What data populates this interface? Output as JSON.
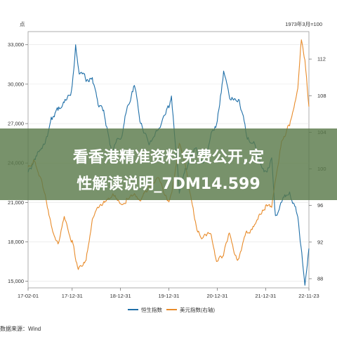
{
  "overlay": {
    "line1": "看香港精准资料免费公开,定",
    "line2": "性解读说明_7DM14.599"
  },
  "source_text": "数据来源：Wind",
  "colors": {
    "hsi": "#1f6fa8",
    "usd": "#e88b2a",
    "banner": "#5a7a4a"
  },
  "chart_data": {
    "type": "line",
    "left_unit": "点",
    "right_unit": "1973年3月=100",
    "x_ticks": [
      "17-02-01",
      "17-12-31",
      "18-12-31",
      "19-12-31",
      "20-12-31",
      "21-12-31",
      "22-11-23"
    ],
    "y_left_ticks": [
      "33,000",
      "30,000",
      "27,000",
      "24,000",
      "21,000",
      "18,000",
      "15,000"
    ],
    "y_right_ticks": [
      "112",
      "108",
      "104",
      "100",
      "96",
      "92",
      "88"
    ],
    "ylim_left": [
      14500,
      34000
    ],
    "ylim_right": [
      87,
      115
    ],
    "legend_position": "bottom",
    "series": [
      {
        "name": "恒生指数",
        "axis": "left",
        "x": [
          "17-02-01",
          "17-03-15",
          "17-05-01",
          "17-06-15",
          "17-08-01",
          "17-09-15",
          "17-11-01",
          "17-12-31",
          "18-01-26",
          "18-02-28",
          "18-04-15",
          "18-06-01",
          "18-07-15",
          "18-09-01",
          "18-10-30",
          "18-12-31",
          "19-02-15",
          "19-04-15",
          "19-06-01",
          "19-08-15",
          "19-10-15",
          "19-12-31",
          "20-01-20",
          "20-03-19",
          "20-05-15",
          "20-07-15",
          "20-09-15",
          "20-11-15",
          "20-12-31",
          "21-02-17",
          "21-04-15",
          "21-06-15",
          "21-08-15",
          "21-10-15",
          "21-12-31",
          "22-02-15",
          "22-03-15",
          "22-04-30",
          "22-06-30",
          "22-08-31",
          "22-10-24",
          "22-11-23"
        ],
        "values": [
          23300,
          24100,
          25000,
          25800,
          27300,
          28000,
          28600,
          29900,
          33000,
          30800,
          30200,
          30500,
          28400,
          27600,
          24800,
          25800,
          28000,
          29900,
          27000,
          25700,
          26600,
          28200,
          29100,
          21700,
          23500,
          25100,
          24000,
          26300,
          27200,
          31000,
          28800,
          28800,
          25800,
          25300,
          23400,
          24400,
          20000,
          21000,
          21800,
          19900,
          14700,
          17500
        ]
      },
      {
        "name": "美元指数(右轴)",
        "axis": "right",
        "x": [
          "17-02-01",
          "17-03-15",
          "17-05-01",
          "17-06-15",
          "17-08-01",
          "17-09-15",
          "17-11-01",
          "17-12-31",
          "18-02-15",
          "18-04-15",
          "18-06-01",
          "18-08-15",
          "18-11-15",
          "18-12-31",
          "19-02-15",
          "19-04-15",
          "19-06-01",
          "19-08-15",
          "19-10-01",
          "19-12-31",
          "20-02-15",
          "20-03-19",
          "20-05-15",
          "20-07-31",
          "20-09-15",
          "20-11-15",
          "20-12-31",
          "21-02-15",
          "21-04-01",
          "21-06-01",
          "21-08-15",
          "21-10-15",
          "21-12-31",
          "22-02-15",
          "22-04-30",
          "22-06-30",
          "22-08-31",
          "22-09-27",
          "22-10-24",
          "22-11-23"
        ],
        "values": [
          100.2,
          101.0,
          99.2,
          96.8,
          93.5,
          91.8,
          94.8,
          92.2,
          89.0,
          90.0,
          94.5,
          96.0,
          97.0,
          96.2,
          96.8,
          97.3,
          96.5,
          98.0,
          99.0,
          96.4,
          99.5,
          102.8,
          99.6,
          93.3,
          92.5,
          92.8,
          89.9,
          90.5,
          93.0,
          90.0,
          93.0,
          94.0,
          96.0,
          95.8,
          103.0,
          104.7,
          108.8,
          114.1,
          111.9,
          106.8
        ]
      }
    ]
  }
}
